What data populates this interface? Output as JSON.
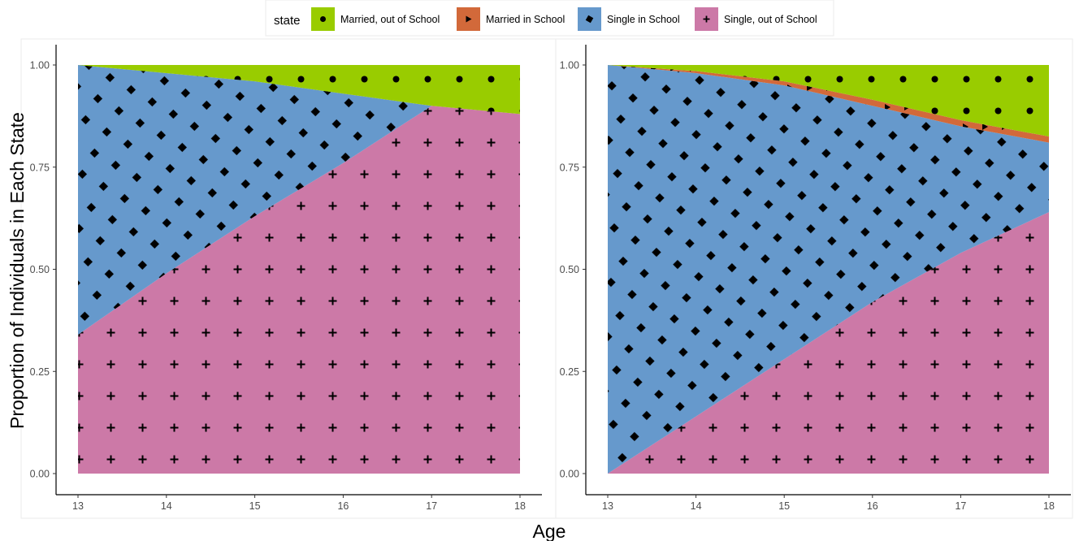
{
  "chart_data": [
    {
      "type": "area",
      "stacked": true,
      "panel": "left",
      "xlabel": "Age",
      "ylabel": "Proportion of Individuals in Each State",
      "xlim": [
        13,
        18
      ],
      "ylim": [
        0,
        1
      ],
      "x_ticks": [
        "13",
        "14",
        "15",
        "16",
        "17",
        "18"
      ],
      "y_ticks": [
        "0.00",
        "0.25",
        "0.50",
        "0.75",
        "1.00"
      ],
      "x": [
        13,
        14,
        15,
        16,
        17,
        18
      ],
      "series": [
        {
          "name": "Single, out of School",
          "values": [
            0.34,
            0.49,
            0.63,
            0.76,
            0.9,
            0.88
          ]
        },
        {
          "name": "Single in School",
          "values": [
            0.66,
            0.49,
            0.33,
            0.17,
            0.0,
            0.0
          ]
        },
        {
          "name": "Married in School",
          "values": [
            0.0,
            0.0,
            0.0,
            0.0,
            0.0,
            0.0
          ]
        },
        {
          "name": "Married, out of School",
          "values": [
            0.0,
            0.02,
            0.04,
            0.07,
            0.1,
            0.12
          ]
        }
      ]
    },
    {
      "type": "area",
      "stacked": true,
      "panel": "right",
      "xlabel": "Age",
      "ylabel": "Proportion of Individuals in Each State",
      "xlim": [
        13,
        18
      ],
      "ylim": [
        0,
        1
      ],
      "x_ticks": [
        "13",
        "14",
        "15",
        "16",
        "17",
        "18"
      ],
      "y_ticks": [
        "0.00",
        "0.25",
        "0.50",
        "0.75",
        "1.00"
      ],
      "x": [
        13,
        14,
        15,
        16,
        17,
        18
      ],
      "series": [
        {
          "name": "Single, out of School",
          "values": [
            0.0,
            0.14,
            0.28,
            0.42,
            0.54,
            0.64
          ]
        },
        {
          "name": "Single in School",
          "values": [
            1.0,
            0.84,
            0.67,
            0.48,
            0.31,
            0.17
          ]
        },
        {
          "name": "Married in School",
          "values": [
            0.0,
            0.005,
            0.01,
            0.015,
            0.015,
            0.015
          ]
        },
        {
          "name": "Married, out of School",
          "values": [
            0.0,
            0.015,
            0.04,
            0.085,
            0.135,
            0.175
          ]
        }
      ]
    }
  ],
  "shared": {
    "xlabel": "Age",
    "ylabel": "Proportion of Individuals in Each State"
  },
  "legend": {
    "title": "state",
    "position": "top",
    "items": [
      {
        "label": "Married, out of School",
        "color": "#99CC00",
        "marker": "dot"
      },
      {
        "label": "Married in School",
        "color": "#D2693A",
        "marker": "triangle"
      },
      {
        "label": "Single in School",
        "color": "#6699CC",
        "marker": "diamond"
      },
      {
        "label": "Single, out of School",
        "color": "#CC79A7",
        "marker": "plus"
      }
    ]
  },
  "colors": {
    "Single, out of School": "#CC79A7",
    "Single in School": "#6699CC",
    "Married in School": "#D2693A",
    "Married, out of School": "#99CC00"
  }
}
